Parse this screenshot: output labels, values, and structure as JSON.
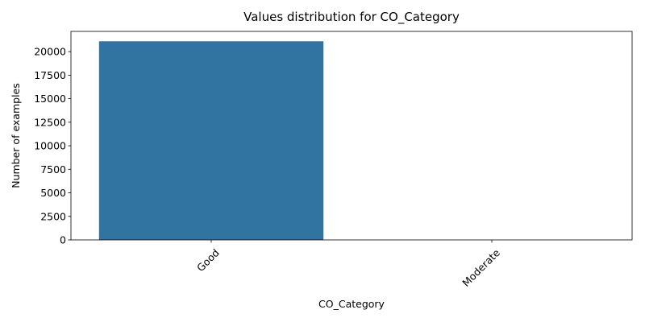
{
  "chart_data": {
    "type": "bar",
    "title": "Values distribution for CO_Category",
    "xlabel": "CO_Category",
    "ylabel": "Number of examples",
    "categories": [
      "Good",
      "Moderate"
    ],
    "values": [
      21100,
      0
    ],
    "ylim": [
      0,
      22150
    ],
    "yticks": [
      0,
      2500,
      5000,
      7500,
      10000,
      12500,
      15000,
      17500,
      20000
    ],
    "ytick_labels": [
      "0",
      "2500",
      "5000",
      "7500",
      "10000",
      "12500",
      "15000",
      "17500",
      "20000"
    ],
    "xtick_rotation_deg": 45,
    "grid": false,
    "legend": "none",
    "bar_color": "#3274a1"
  }
}
